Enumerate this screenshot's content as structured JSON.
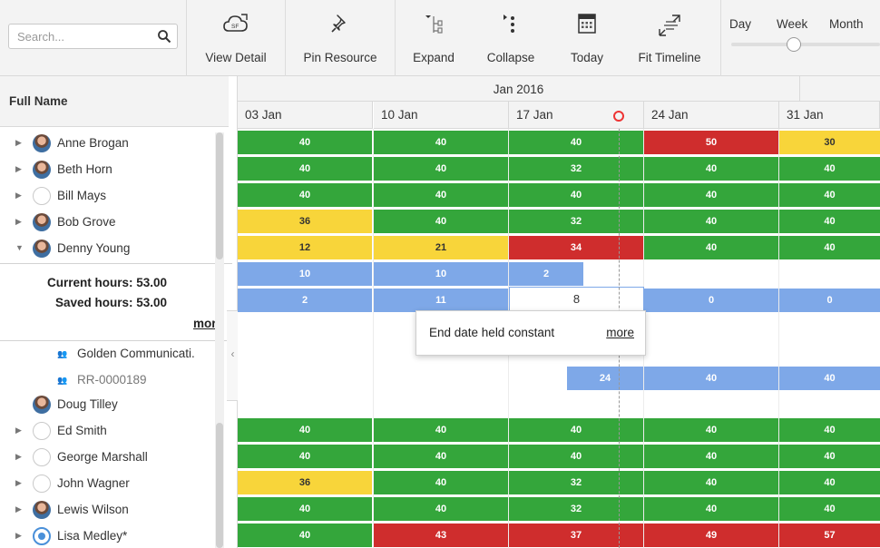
{
  "toolbar": {
    "search_placeholder": "Search...",
    "buttons": [
      {
        "label": "View Detail",
        "icon": "cloud-sf-icon"
      },
      {
        "label": "Pin Resource",
        "icon": "pin-icon"
      },
      {
        "label": "Expand",
        "icon": "expand-icon"
      },
      {
        "label": "Collapse",
        "icon": "collapse-icon"
      },
      {
        "label": "Today",
        "icon": "calendar-icon"
      },
      {
        "label": "Fit Timeline",
        "icon": "fit-timeline-icon"
      }
    ],
    "zoom": {
      "options": [
        "Day",
        "Week",
        "Month"
      ],
      "selected": "Week"
    }
  },
  "left": {
    "column_header": "Full Name",
    "resources_top": [
      {
        "name": "Anne Brogan",
        "avatar": "photo",
        "expanded": false
      },
      {
        "name": "Beth Horn",
        "avatar": "photo",
        "expanded": false
      },
      {
        "name": "Bill Mays",
        "avatar": "empty",
        "expanded": false
      },
      {
        "name": "Bob Grove",
        "avatar": "photo",
        "expanded": false
      },
      {
        "name": "Denny Young",
        "avatar": "photo",
        "expanded": true
      }
    ],
    "hours_panel": {
      "current": "Current hours: 53.00",
      "saved": "Saved hours: 53.00",
      "more": "more"
    },
    "projects": [
      {
        "name": "Golden Communicati.",
        "style": "dark"
      },
      {
        "name": "RR-0000189",
        "style": "muted"
      }
    ],
    "resources_bottom": [
      {
        "name": "Doug Tilley",
        "avatar": "photo",
        "caret": false
      },
      {
        "name": "Ed Smith",
        "avatar": "empty",
        "caret": true
      },
      {
        "name": "George Marshall",
        "avatar": "empty",
        "caret": true
      },
      {
        "name": "John Wagner",
        "avatar": "empty",
        "caret": true
      },
      {
        "name": "Lewis Wilson",
        "avatar": "photo",
        "caret": true
      },
      {
        "name": "Lisa Medley*",
        "avatar": "blue",
        "caret": true
      }
    ]
  },
  "timeline": {
    "month": "Jan 2016",
    "weeks": [
      "03 Jan",
      "10 Jan",
      "17 Jan",
      "24 Jan",
      "31 Jan"
    ],
    "rows_top": [
      [
        {
          "v": "40",
          "c": "g"
        },
        {
          "v": "40",
          "c": "g"
        },
        {
          "v": "40",
          "c": "g"
        },
        {
          "v": "50",
          "c": "r"
        },
        {
          "v": "30",
          "c": "y"
        }
      ],
      [
        {
          "v": "40",
          "c": "g"
        },
        {
          "v": "40",
          "c": "g"
        },
        {
          "v": "32",
          "c": "g"
        },
        {
          "v": "40",
          "c": "g"
        },
        {
          "v": "40",
          "c": "g"
        }
      ],
      [
        {
          "v": "40",
          "c": "g"
        },
        {
          "v": "40",
          "c": "g"
        },
        {
          "v": "40",
          "c": "g"
        },
        {
          "v": "40",
          "c": "g"
        },
        {
          "v": "40",
          "c": "g"
        }
      ],
      [
        {
          "v": "36",
          "c": "y"
        },
        {
          "v": "40",
          "c": "g"
        },
        {
          "v": "32",
          "c": "g"
        },
        {
          "v": "40",
          "c": "g"
        },
        {
          "v": "40",
          "c": "g"
        }
      ],
      [
        {
          "v": "12",
          "c": "y"
        },
        {
          "v": "21",
          "c": "y"
        },
        {
          "v": "34",
          "c": "r"
        },
        {
          "v": "40",
          "c": "g"
        },
        {
          "v": "40",
          "c": "g"
        }
      ]
    ],
    "assign_row_1": [
      "10",
      "10",
      "2"
    ],
    "assign_row_2": [
      "2",
      "11",
      "8",
      "0",
      "0"
    ],
    "tooltip": {
      "message": "End date held constant",
      "more": "more"
    },
    "project_row": [
      "24",
      "40",
      "40"
    ],
    "rows_bottom": [
      [
        {
          "v": "40",
          "c": "g"
        },
        {
          "v": "40",
          "c": "g"
        },
        {
          "v": "40",
          "c": "g"
        },
        {
          "v": "40",
          "c": "g"
        },
        {
          "v": "40",
          "c": "g"
        }
      ],
      [
        {
          "v": "40",
          "c": "g"
        },
        {
          "v": "40",
          "c": "g"
        },
        {
          "v": "40",
          "c": "g"
        },
        {
          "v": "40",
          "c": "g"
        },
        {
          "v": "40",
          "c": "g"
        }
      ],
      [
        {
          "v": "36",
          "c": "y"
        },
        {
          "v": "40",
          "c": "g"
        },
        {
          "v": "32",
          "c": "g"
        },
        {
          "v": "40",
          "c": "g"
        },
        {
          "v": "40",
          "c": "g"
        }
      ],
      [
        {
          "v": "40",
          "c": "g"
        },
        {
          "v": "40",
          "c": "g"
        },
        {
          "v": "32",
          "c": "g"
        },
        {
          "v": "40",
          "c": "g"
        },
        {
          "v": "40",
          "c": "g"
        }
      ],
      [
        {
          "v": "40",
          "c": "g"
        },
        {
          "v": "43",
          "c": "r"
        },
        {
          "v": "37",
          "c": "r"
        },
        {
          "v": "49",
          "c": "r"
        },
        {
          "v": "57",
          "c": "r"
        }
      ]
    ]
  }
}
